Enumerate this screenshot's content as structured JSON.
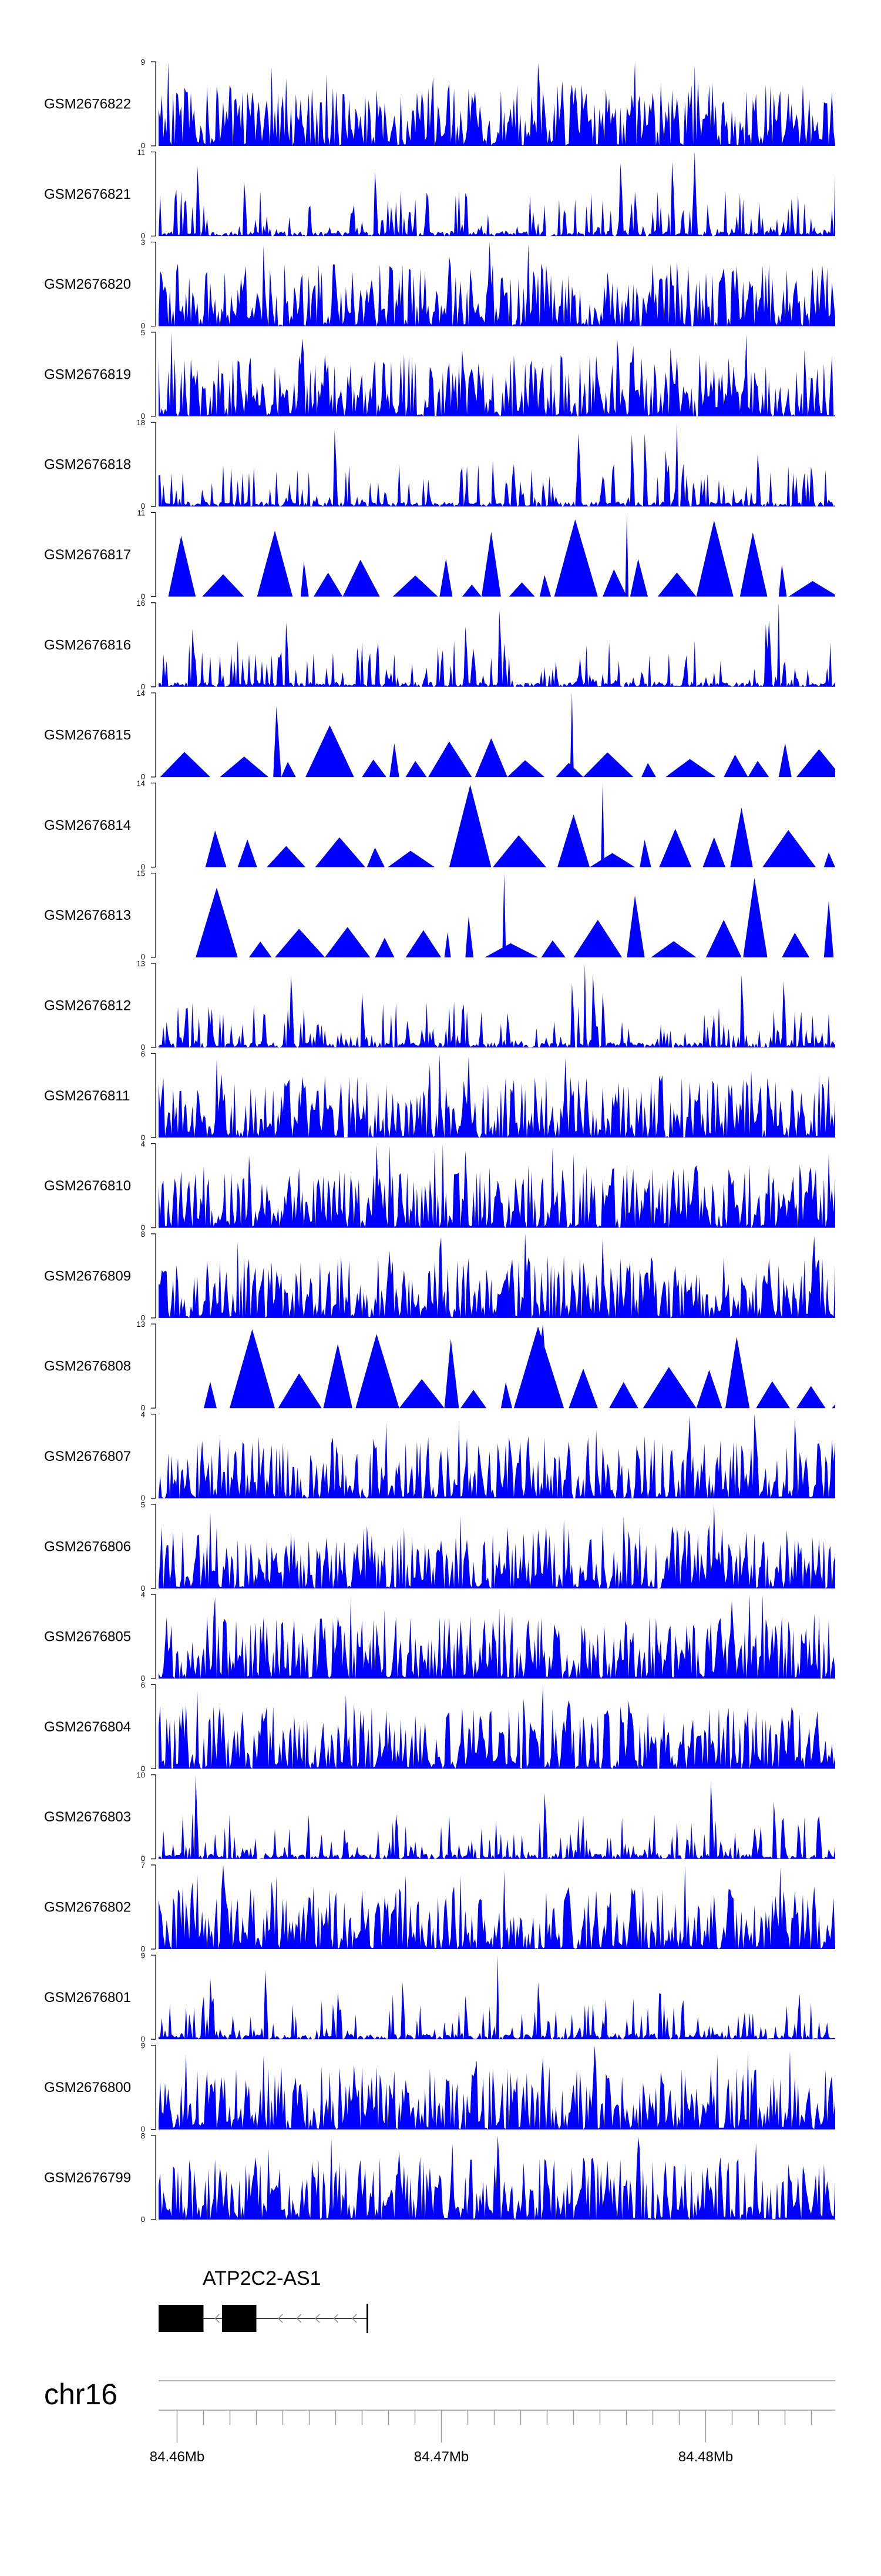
{
  "chart_data": {
    "type": "area",
    "title": "",
    "chromosome": "chr16",
    "x_axis": {
      "unit": "Mb",
      "range": [
        84.4593,
        84.4849
      ],
      "ticks": [
        84.46,
        84.47,
        84.48
      ],
      "tick_labels": [
        "84.46Mb",
        "84.47Mb",
        "84.48Mb"
      ],
      "minor_ticks": [
        84.461,
        84.462,
        84.463,
        84.464,
        84.465,
        84.466,
        84.467,
        84.468,
        84.469,
        84.471,
        84.472,
        84.473,
        84.474,
        84.475,
        84.476,
        84.477,
        84.478,
        84.479,
        84.481,
        84.482,
        84.483,
        84.484
      ]
    },
    "series": [
      {
        "name": "GSM2676822",
        "ymax": 9,
        "seed": 22,
        "mode": "dense"
      },
      {
        "name": "GSM2676821",
        "ymax": 11,
        "seed": 21,
        "mode": "sparse"
      },
      {
        "name": "GSM2676820",
        "ymax": 3,
        "seed": 20,
        "mode": "dense"
      },
      {
        "name": "GSM2676819",
        "ymax": 5,
        "seed": 19,
        "mode": "dense"
      },
      {
        "name": "GSM2676818",
        "ymax": 18,
        "seed": 18,
        "mode": "sparse"
      },
      {
        "name": "GSM2676817",
        "ymax": 11,
        "seed": 17,
        "mode": "triangles"
      },
      {
        "name": "GSM2676816",
        "ymax": 16,
        "seed": 16,
        "mode": "sparse"
      },
      {
        "name": "GSM2676815",
        "ymax": 14,
        "seed": 15,
        "mode": "triangles"
      },
      {
        "name": "GSM2676814",
        "ymax": 14,
        "seed": 14,
        "mode": "triangles"
      },
      {
        "name": "GSM2676813",
        "ymax": 15,
        "seed": 13,
        "mode": "triangles"
      },
      {
        "name": "GSM2676812",
        "ymax": 13,
        "seed": 12,
        "mode": "sparse"
      },
      {
        "name": "GSM2676811",
        "ymax": 6,
        "seed": 11,
        "mode": "dense"
      },
      {
        "name": "GSM2676810",
        "ymax": 4,
        "seed": 10,
        "mode": "dense"
      },
      {
        "name": "GSM2676809",
        "ymax": 8,
        "seed": 9,
        "mode": "dense"
      },
      {
        "name": "GSM2676808",
        "ymax": 13,
        "seed": 8,
        "mode": "triangles"
      },
      {
        "name": "GSM2676807",
        "ymax": 4,
        "seed": 7,
        "mode": "dense"
      },
      {
        "name": "GSM2676806",
        "ymax": 5,
        "seed": 6,
        "mode": "dense"
      },
      {
        "name": "GSM2676805",
        "ymax": 4,
        "seed": 5,
        "mode": "dense"
      },
      {
        "name": "GSM2676804",
        "ymax": 6,
        "seed": 4,
        "mode": "dense"
      },
      {
        "name": "GSM2676803",
        "ymax": 10,
        "seed": 3,
        "mode": "sparse"
      },
      {
        "name": "GSM2676802",
        "ymax": 7,
        "seed": 2,
        "mode": "dense"
      },
      {
        "name": "GSM2676801",
        "ymax": 9,
        "seed": 1,
        "mode": "sparse"
      },
      {
        "name": "GSM2676800",
        "ymax": 9,
        "seed": 30,
        "mode": "dense"
      },
      {
        "name": "GSM2676799",
        "ymax": 8,
        "seed": 31,
        "mode": "dense"
      }
    ],
    "y_axis": {
      "min": 0
    },
    "gene_track": {
      "gene_name": "ATP2C2-AS1",
      "strand": "-",
      "start": 84.4593,
      "end": 84.4672,
      "exons": [
        [
          84.4593,
          84.461
        ],
        [
          84.4617,
          84.463
        ]
      ]
    },
    "colors": {
      "signal": "#0000ff",
      "axis": "#000000",
      "genome_axis": "#999999",
      "exon": "#000000"
    }
  }
}
